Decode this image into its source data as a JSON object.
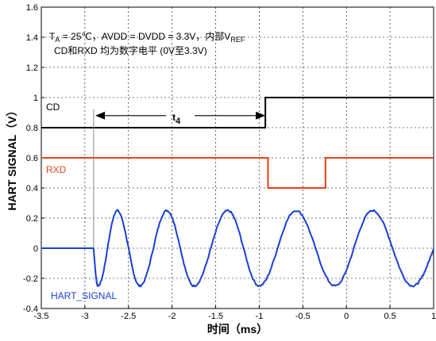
{
  "chart_data": {
    "type": "line",
    "xlabel": "时间（ms）",
    "ylabel": "HART SIGNAL（V）",
    "xlim": [
      -3.5,
      1
    ],
    "ylim": [
      -0.4,
      1.6
    ],
    "xticks": [
      -3.5,
      -3,
      -2.5,
      -2,
      -1.5,
      -1,
      -0.5,
      0,
      0.5,
      1
    ],
    "yticks": [
      -0.4,
      -0.2,
      0,
      0.2,
      0.4,
      0.6,
      0.8,
      1,
      1.2,
      1.4,
      1.6
    ],
    "xtick_labels": [
      "-3.5",
      "-3",
      "-2.5",
      "-2",
      "-1.5",
      "-1",
      "-0.5",
      "0",
      "0.5",
      "1"
    ],
    "ytick_labels": [
      "-0.4",
      "-0.2",
      "0",
      "0.2",
      "0.4",
      "0.6",
      "0.8",
      "1",
      "1.2",
      "1.4",
      "1.6"
    ],
    "grid": true,
    "annotation": {
      "line1_ta": "T",
      "line1_ta_sub": "A",
      "line1_mid": " = 25℃，AVDD = DVDD = 3.3V，内部V",
      "line1_ref_sub": "REF",
      "line2": "CD和RXD 均为数字电平 (0V至3.3V)"
    },
    "t4_label": "t",
    "t4_sub": "4",
    "t4_range": [
      -2.88,
      -0.93
    ],
    "series": [
      {
        "name": "CD",
        "color": "#000000",
        "x": [
          -3.5,
          -0.93,
          -0.93,
          1
        ],
        "y": [
          0.8,
          0.8,
          1.0,
          1.0
        ]
      },
      {
        "name": "RXD",
        "color": "#e8401c",
        "x": [
          -3.5,
          -0.9,
          -0.9,
          -0.24,
          -0.24,
          1
        ],
        "y": [
          0.6,
          0.6,
          0.4,
          0.4,
          0.6,
          0.6
        ]
      },
      {
        "name": "HART_SIGNAL",
        "color": "#1a3fd6",
        "baseline_x": [
          -3.5,
          -2.9
        ],
        "baseline_y": 0,
        "amplitude": 0.25,
        "start_x": -2.9,
        "end_x": 1.0,
        "peaks_x": [
          -2.63,
          -2.06,
          -1.36,
          -0.58,
          0.3
        ],
        "troughs_x": [
          -2.85,
          -2.37,
          -1.75,
          -1.0,
          -0.13,
          0.76
        ]
      }
    ]
  }
}
